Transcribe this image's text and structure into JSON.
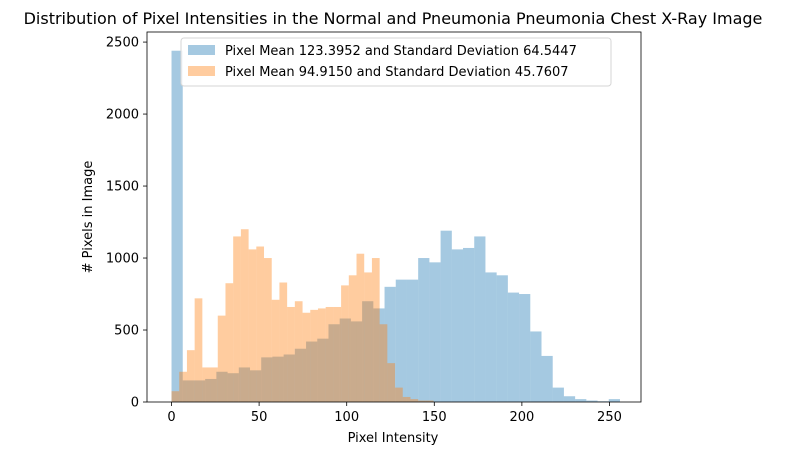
{
  "chart_data": {
    "type": "histogram",
    "title": "Distribution of Pixel Intensities in the Normal and Pneumonia Pneumonia Chest X-Ray Image",
    "xlabel": "Pixel Intensity",
    "ylabel": "# Pixels in Image",
    "xlim": [
      -14,
      268
    ],
    "ylim": [
      0,
      2570
    ],
    "x_ticks": [
      0,
      50,
      100,
      150,
      200,
      250
    ],
    "y_ticks": [
      0,
      500,
      1000,
      1500,
      2000,
      2500
    ],
    "grid": false,
    "legend_position": "top",
    "series": [
      {
        "name": "Pixel Mean 123.3952 and Standard Deviation 64.5447",
        "color": "#1f77b4",
        "alpha": 0.4,
        "bin_start": 0,
        "bin_width": 6.4,
        "counts": [
          2440,
          150,
          150,
          160,
          210,
          200,
          240,
          220,
          310,
          315,
          330,
          370,
          420,
          440,
          540,
          580,
          560,
          700,
          650,
          800,
          850,
          850,
          1000,
          970,
          1190,
          1060,
          1070,
          1150,
          900,
          880,
          760,
          750,
          490,
          320,
          100,
          40,
          20,
          10,
          5,
          20
        ]
      },
      {
        "name": "Pixel Mean 94.9150 and Standard Deviation 45.7607",
        "color": "#ff7f0e",
        "alpha": 0.4,
        "bin_start": 0,
        "bin_width": 4.4,
        "counts": [
          75,
          210,
          360,
          720,
          240,
          240,
          600,
          825,
          1150,
          1200,
          1060,
          1080,
          1000,
          710,
          830,
          660,
          700,
          620,
          640,
          650,
          660,
          660,
          810,
          880,
          1030,
          900,
          1000,
          540,
          270,
          100,
          35,
          20,
          10,
          10
        ]
      }
    ]
  }
}
